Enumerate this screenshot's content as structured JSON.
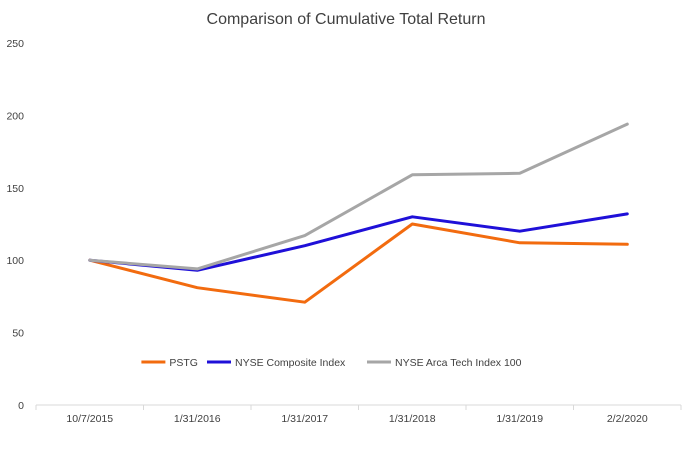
{
  "chart_data": {
    "type": "line",
    "title": "Comparison of Cumulative Total Return",
    "xlabel": "",
    "ylabel": "",
    "categories": [
      "10/7/2015",
      "1/31/2016",
      "1/31/2017",
      "1/31/2018",
      "1/31/2019",
      "2/2/2020"
    ],
    "ylim": [
      0,
      250
    ],
    "yticks": [
      0,
      50,
      100,
      150,
      200,
      250
    ],
    "grid": false,
    "legend": "inside-bottom-center",
    "series": [
      {
        "name": "PSTG",
        "color": "#F26B0F",
        "values": [
          100,
          81,
          71,
          125,
          112,
          111
        ]
      },
      {
        "name": "NYSE Composite Index",
        "color": "#1F10D8",
        "values": [
          100,
          93,
          110,
          130,
          120,
          132
        ]
      },
      {
        "name": "NYSE Arca Tech Index 100",
        "color": "#A6A6A6",
        "values": [
          100,
          94,
          117,
          159,
          160,
          194
        ]
      }
    ]
  }
}
